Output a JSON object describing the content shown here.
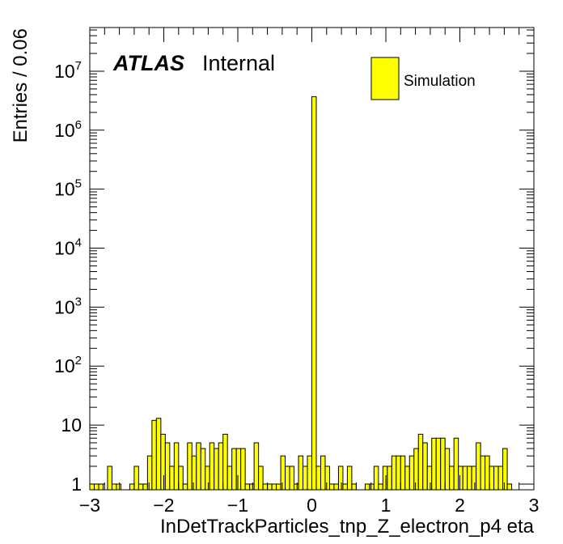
{
  "chart_data": {
    "type": "bar",
    "histogram": true,
    "xlabel": "InDetTrackParticles_tnp_Z_electron_p4 eta",
    "ylabel": "Entries / 0.06",
    "xlim": [
      -3,
      3
    ],
    "ylim": [
      0.8,
      55000000
    ],
    "log_y": true,
    "bin_width": 0.06,
    "x_ticks": [
      {
        "value": -3,
        "label": "−3"
      },
      {
        "value": -2,
        "label": "−2"
      },
      {
        "value": -1,
        "label": "−1"
      },
      {
        "value": 0,
        "label": "0"
      },
      {
        "value": 1,
        "label": "1"
      },
      {
        "value": 2,
        "label": "2"
      },
      {
        "value": 3,
        "label": "3"
      }
    ],
    "y_ticks": [
      {
        "value": 1,
        "base": "1",
        "exp": ""
      },
      {
        "value": 10,
        "base": "10",
        "exp": ""
      },
      {
        "value": 100,
        "base": "10",
        "exp": "2"
      },
      {
        "value": 1000,
        "base": "10",
        "exp": "3"
      },
      {
        "value": 10000,
        "base": "10",
        "exp": "4"
      },
      {
        "value": 100000,
        "base": "10",
        "exp": "5"
      },
      {
        "value": 1000000,
        "base": "10",
        "exp": "6"
      },
      {
        "value": 10000000,
        "base": "10",
        "exp": "7"
      }
    ],
    "series": [
      {
        "name": "Simulation",
        "color": "#ffff00",
        "edge_color": "#000000",
        "bins": [
          {
            "x": -2.97,
            "y": 1
          },
          {
            "x": -2.91,
            "y": 1
          },
          {
            "x": -2.85,
            "y": 1
          },
          {
            "x": -2.73,
            "y": 2
          },
          {
            "x": -2.67,
            "y": 1
          },
          {
            "x": -2.61,
            "y": 1
          },
          {
            "x": -2.43,
            "y": 1
          },
          {
            "x": -2.37,
            "y": 2
          },
          {
            "x": -2.31,
            "y": 1
          },
          {
            "x": -2.25,
            "y": 1
          },
          {
            "x": -2.19,
            "y": 3
          },
          {
            "x": -2.13,
            "y": 12
          },
          {
            "x": -2.07,
            "y": 13
          },
          {
            "x": -2.01,
            "y": 7
          },
          {
            "x": -1.95,
            "y": 5
          },
          {
            "x": -1.89,
            "y": 2
          },
          {
            "x": -1.83,
            "y": 5
          },
          {
            "x": -1.77,
            "y": 2
          },
          {
            "x": -1.71,
            "y": 1
          },
          {
            "x": -1.65,
            "y": 5
          },
          {
            "x": -1.59,
            "y": 3
          },
          {
            "x": -1.53,
            "y": 5
          },
          {
            "x": -1.47,
            "y": 4
          },
          {
            "x": -1.41,
            "y": 2
          },
          {
            "x": -1.35,
            "y": 5
          },
          {
            "x": -1.29,
            "y": 4
          },
          {
            "x": -1.23,
            "y": 5
          },
          {
            "x": -1.17,
            "y": 7
          },
          {
            "x": -1.11,
            "y": 2
          },
          {
            "x": -1.05,
            "y": 4
          },
          {
            "x": -0.99,
            "y": 4
          },
          {
            "x": -0.93,
            "y": 4
          },
          {
            "x": -0.87,
            "y": 1
          },
          {
            "x": -0.81,
            "y": 1
          },
          {
            "x": -0.75,
            "y": 5
          },
          {
            "x": -0.69,
            "y": 2
          },
          {
            "x": -0.63,
            "y": 1
          },
          {
            "x": -0.57,
            "y": 1
          },
          {
            "x": -0.51,
            "y": 1
          },
          {
            "x": -0.45,
            "y": 1
          },
          {
            "x": -0.39,
            "y": 3
          },
          {
            "x": -0.33,
            "y": 2
          },
          {
            "x": -0.27,
            "y": 2
          },
          {
            "x": -0.21,
            "y": 1
          },
          {
            "x": -0.15,
            "y": 3
          },
          {
            "x": -0.09,
            "y": 2
          },
          {
            "x": -0.03,
            "y": 3
          },
          {
            "x": 0.03,
            "y": 3700000
          },
          {
            "x": 0.09,
            "y": 2
          },
          {
            "x": 0.15,
            "y": 3
          },
          {
            "x": 0.21,
            "y": 2
          },
          {
            "x": 0.27,
            "y": 1
          },
          {
            "x": 0.33,
            "y": 1
          },
          {
            "x": 0.39,
            "y": 2
          },
          {
            "x": 0.45,
            "y": 1
          },
          {
            "x": 0.51,
            "y": 2
          },
          {
            "x": 0.57,
            "y": 1
          },
          {
            "x": 0.75,
            "y": 1
          },
          {
            "x": 0.81,
            "y": 1
          },
          {
            "x": 0.87,
            "y": 2
          },
          {
            "x": 0.93,
            "y": 1
          },
          {
            "x": 0.99,
            "y": 2
          },
          {
            "x": 1.05,
            "y": 2
          },
          {
            "x": 1.11,
            "y": 3
          },
          {
            "x": 1.17,
            "y": 3
          },
          {
            "x": 1.23,
            "y": 3
          },
          {
            "x": 1.29,
            "y": 2
          },
          {
            "x": 1.35,
            "y": 3
          },
          {
            "x": 1.41,
            "y": 4
          },
          {
            "x": 1.47,
            "y": 7
          },
          {
            "x": 1.53,
            "y": 5
          },
          {
            "x": 1.59,
            "y": 2
          },
          {
            "x": 1.65,
            "y": 6
          },
          {
            "x": 1.71,
            "y": 6
          },
          {
            "x": 1.77,
            "y": 6
          },
          {
            "x": 1.83,
            "y": 4
          },
          {
            "x": 1.89,
            "y": 2
          },
          {
            "x": 1.95,
            "y": 6
          },
          {
            "x": 2.01,
            "y": 2
          },
          {
            "x": 2.07,
            "y": 2
          },
          {
            "x": 2.13,
            "y": 2
          },
          {
            "x": 2.19,
            "y": 2
          },
          {
            "x": 2.25,
            "y": 5
          },
          {
            "x": 2.31,
            "y": 3
          },
          {
            "x": 2.37,
            "y": 3
          },
          {
            "x": 2.43,
            "y": 2
          },
          {
            "x": 2.49,
            "y": 2
          },
          {
            "x": 2.55,
            "y": 2
          },
          {
            "x": 2.61,
            "y": 4
          },
          {
            "x": 2.67,
            "y": 1
          }
        ]
      }
    ],
    "legend": {
      "position": "top-right",
      "entries": [
        "Simulation"
      ]
    },
    "annotation": {
      "experiment": "ATLAS",
      "status": "Internal"
    },
    "grid": false
  }
}
